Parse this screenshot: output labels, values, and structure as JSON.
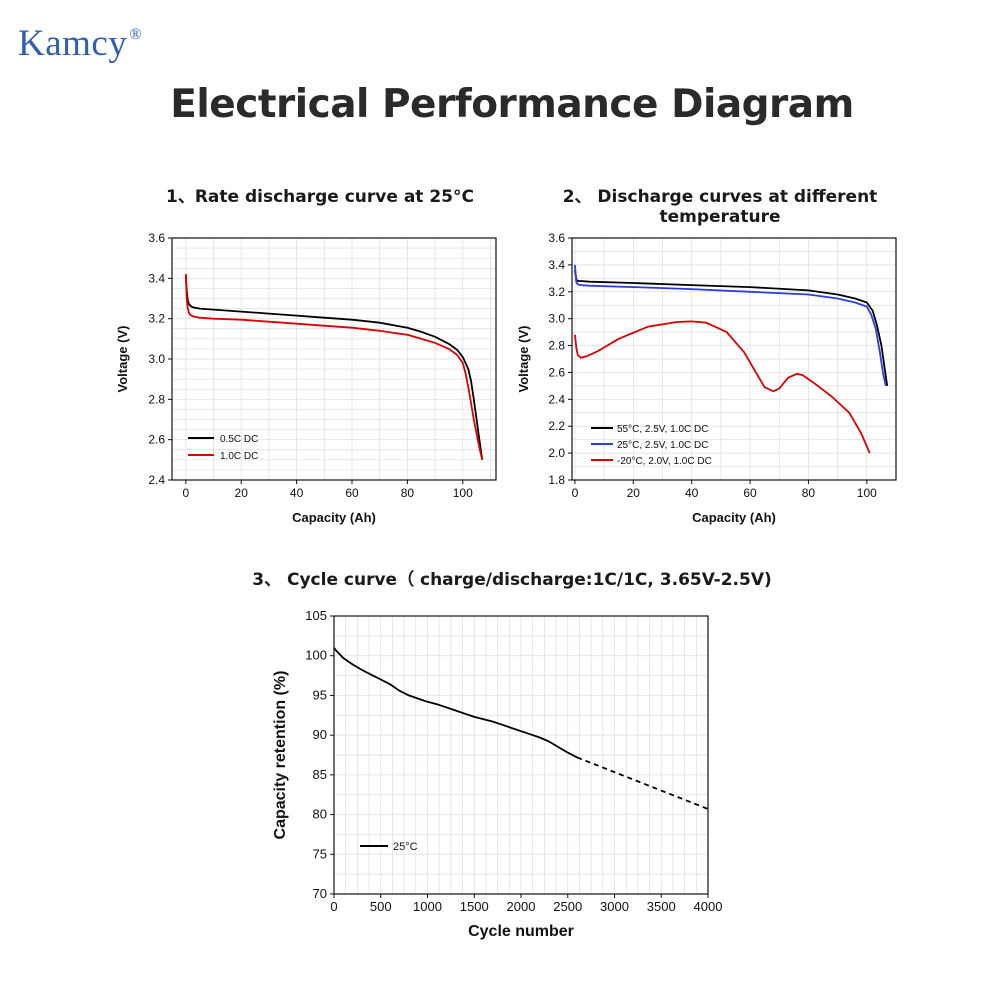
{
  "brand": {
    "name": "Kamcy",
    "mark": "®"
  },
  "page_title": "Electrical Performance Diagram",
  "chart_data": [
    {
      "type": "line",
      "title": "1、Rate discharge curve at 25°C",
      "xlabel": "Capacity (Ah)",
      "ylabel": "Voltage (V)",
      "xlim": [
        -5,
        112
      ],
      "ylim": [
        2.4,
        3.6
      ],
      "xticks": [
        0,
        20,
        40,
        60,
        80,
        100
      ],
      "yticks": [
        "2.4",
        "2.6",
        "2.8",
        "3.0",
        "3.2",
        "3.4",
        "3.6"
      ],
      "grid": true,
      "legend": "bottom-left",
      "series": [
        {
          "name": "0.5C DC",
          "color": "#000000",
          "dashed": false,
          "x": [
            0,
            0.3,
            0.7,
            1.2,
            2,
            3,
            5,
            10,
            20,
            30,
            40,
            50,
            60,
            70,
            80,
            85,
            90,
            95,
            98,
            100,
            102,
            103,
            104,
            105,
            106,
            107
          ],
          "y": [
            3.42,
            3.34,
            3.29,
            3.27,
            3.26,
            3.255,
            3.25,
            3.245,
            3.235,
            3.225,
            3.215,
            3.205,
            3.195,
            3.18,
            3.155,
            3.135,
            3.11,
            3.075,
            3.045,
            3.01,
            2.95,
            2.89,
            2.8,
            2.7,
            2.6,
            2.5
          ]
        },
        {
          "name": "1.0C DC",
          "color": "#e00000",
          "dashed": false,
          "x": [
            0,
            0.3,
            0.7,
            1.2,
            2,
            3,
            5,
            10,
            20,
            30,
            40,
            50,
            60,
            70,
            80,
            85,
            90,
            95,
            98,
            100,
            101,
            102,
            103,
            104,
            105,
            106,
            107
          ],
          "y": [
            3.42,
            3.3,
            3.25,
            3.225,
            3.215,
            3.21,
            3.205,
            3.2,
            3.195,
            3.185,
            3.175,
            3.165,
            3.155,
            3.14,
            3.12,
            3.1,
            3.08,
            3.05,
            3.02,
            2.98,
            2.93,
            2.86,
            2.78,
            2.7,
            2.63,
            2.56,
            2.5
          ]
        }
      ]
    },
    {
      "type": "line",
      "title": "2、 Discharge curves at different temperature",
      "xlabel": "Capacity (Ah)",
      "ylabel": "Voltage (V)",
      "xlim": [
        -1,
        110
      ],
      "ylim": [
        1.8,
        3.6
      ],
      "xticks": [
        0,
        20,
        40,
        60,
        80,
        100
      ],
      "yticks": [
        "1.8",
        "2.0",
        "2.2",
        "2.4",
        "2.6",
        "2.8",
        "3.0",
        "3.2",
        "3.4",
        "3.6"
      ],
      "grid": true,
      "legend": "bottom-left",
      "series": [
        {
          "name": "55°C, 2.5V, 1.0C DC",
          "color": "#000000",
          "dashed": false,
          "x": [
            0,
            0.5,
            1,
            2,
            5,
            20,
            40,
            60,
            80,
            90,
            96,
            100,
            102,
            103.5,
            105,
            106,
            107
          ],
          "y": [
            3.36,
            3.29,
            3.28,
            3.28,
            3.275,
            3.265,
            3.25,
            3.235,
            3.21,
            3.18,
            3.15,
            3.12,
            3.06,
            2.95,
            2.8,
            2.65,
            2.5
          ]
        },
        {
          "name": "25°C, 2.5V, 1.0C DC",
          "color": "#2b3de0",
          "dashed": false,
          "x": [
            0,
            0.5,
            1,
            2,
            5,
            20,
            40,
            60,
            80,
            90,
            96,
            100,
            101.5,
            103,
            104.5,
            105.5,
            106.5
          ],
          "y": [
            3.4,
            3.27,
            3.255,
            3.25,
            3.245,
            3.235,
            3.22,
            3.2,
            3.18,
            3.15,
            3.12,
            3.09,
            3.03,
            2.93,
            2.75,
            2.6,
            2.5
          ]
        },
        {
          "name": "-20°C, 2.0V, 1.0C DC",
          "color": "#e00000",
          "dashed": false,
          "x": [
            0,
            0.5,
            1,
            2,
            4,
            8,
            15,
            25,
            35,
            40,
            45,
            52,
            58,
            62,
            65,
            68,
            70,
            73,
            76,
            78,
            82,
            88,
            94,
            98,
            101
          ],
          "y": [
            2.88,
            2.78,
            2.73,
            2.71,
            2.72,
            2.76,
            2.85,
            2.94,
            2.975,
            2.98,
            2.97,
            2.9,
            2.75,
            2.6,
            2.49,
            2.46,
            2.48,
            2.56,
            2.59,
            2.58,
            2.52,
            2.42,
            2.3,
            2.15,
            2.0
          ]
        }
      ]
    },
    {
      "type": "line",
      "title": "3、 Cycle curve（ charge/discharge:1C/1C, 3.65V-2.5V)",
      "xlabel": "Cycle number",
      "ylabel": "Capacity retention (%)",
      "xlim": [
        0,
        4000
      ],
      "ylim": [
        70,
        105
      ],
      "xticks": [
        0,
        500,
        1000,
        1500,
        2000,
        2500,
        3000,
        3500,
        4000
      ],
      "yticks": [
        70,
        75,
        80,
        85,
        90,
        95,
        100,
        105
      ],
      "grid": true,
      "legend": "bottom-left",
      "series": [
        {
          "name": "25°C",
          "color": "#000000",
          "dashed": false,
          "x": [
            0,
            20,
            50,
            100,
            200,
            300,
            400,
            500,
            600,
            700,
            800,
            900,
            1000,
            1100,
            1200,
            1300,
            1400,
            1500,
            1600,
            1700,
            1800,
            1900,
            2000,
            2100,
            2200,
            2300,
            2400,
            2500,
            2600
          ],
          "y": [
            101,
            100.7,
            100.3,
            99.7,
            98.9,
            98.2,
            97.6,
            97.0,
            96.4,
            95.6,
            95.0,
            94.6,
            94.2,
            93.9,
            93.5,
            93.1,
            92.7,
            92.3,
            92.0,
            91.7,
            91.3,
            90.9,
            90.5,
            90.1,
            89.7,
            89.2,
            88.5,
            87.8,
            87.2
          ]
        },
        {
          "name": "",
          "color": "#000000",
          "dashed": true,
          "x": [
            2600,
            4000
          ],
          "y": [
            87.2,
            80.7
          ]
        }
      ]
    }
  ]
}
